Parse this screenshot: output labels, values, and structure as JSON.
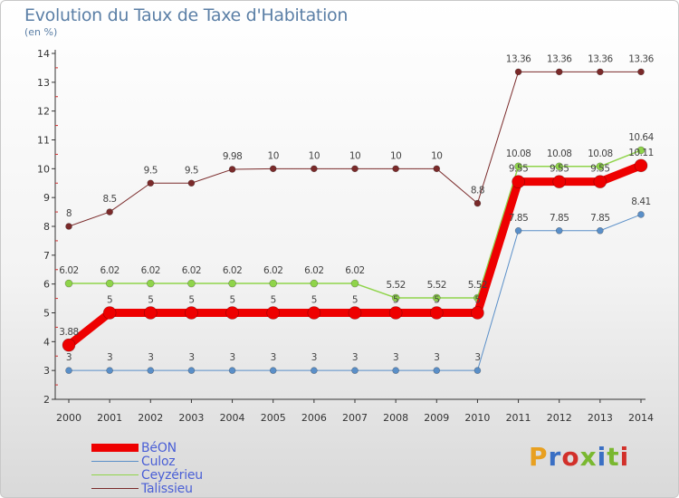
{
  "header": {
    "title": "Evolution du Taux de Taxe d'Habitation",
    "subtitle": "(en %)"
  },
  "brand": {
    "logo_text": "Proxiti",
    "colors": [
      "#e8a020",
      "#3a6fc4",
      "#d2302a",
      "#7ab830",
      "#3a6fc4",
      "#7ab830",
      "#d2302a"
    ]
  },
  "chart_data": {
    "type": "line",
    "title": "Evolution du Taux de Taxe d'Habitation",
    "subtitle": "(en %)",
    "xlabel": "",
    "ylabel": "",
    "categories": [
      "2000",
      "2001",
      "2002",
      "2003",
      "2004",
      "2005",
      "2006",
      "2007",
      "2008",
      "2009",
      "2010",
      "2011",
      "2012",
      "2013",
      "2014"
    ],
    "ylim": [
      2,
      14
    ],
    "yticks": [
      2,
      3,
      4,
      5,
      6,
      7,
      8,
      9,
      10,
      11,
      12,
      13,
      14
    ],
    "grid": false,
    "legend_position": "bottom-left",
    "series": [
      {
        "name": "Talissieu",
        "color": "#7a2a2a",
        "line_width": 1,
        "marker_r": 3.5,
        "values": [
          8,
          8.5,
          9.5,
          9.5,
          9.98,
          10,
          10,
          10,
          10,
          10,
          8.8,
          13.36,
          13.36,
          13.36,
          13.36
        ],
        "labels": [
          "8",
          "8.5",
          "9.5",
          "9.5",
          "9.98",
          "10",
          "10",
          "10",
          "10",
          "10",
          "8.8",
          "13.36",
          "13.36",
          "13.36",
          "13.36"
        ]
      },
      {
        "name": "Culoz",
        "color": "#5a8fc8",
        "line_width": 1,
        "marker_r": 3.5,
        "values": [
          3,
          3,
          3,
          3,
          3,
          3,
          3,
          3,
          3,
          3,
          3,
          7.85,
          7.85,
          7.85,
          8.41
        ],
        "labels": [
          "3",
          "3",
          "3",
          "3",
          "3",
          "3",
          "3",
          "3",
          "3",
          "3",
          "3",
          "7.85",
          "7.85",
          "7.85",
          "8.41"
        ]
      },
      {
        "name": "Ceyzérieu",
        "color": "#8fd44a",
        "line_width": 1.5,
        "marker_r": 4,
        "values": [
          6.02,
          6.02,
          6.02,
          6.02,
          6.02,
          6.02,
          6.02,
          6.02,
          5.52,
          5.52,
          5.52,
          10.08,
          10.08,
          10.08,
          10.64
        ],
        "labels": [
          "6.02",
          "6.02",
          "6.02",
          "6.02",
          "6.02",
          "6.02",
          "6.02",
          "6.02",
          "5.52",
          "5.52",
          "5.52",
          "10.08",
          "10.08",
          "10.08",
          "10.64"
        ]
      },
      {
        "name": "BéON",
        "color": "#ee0000",
        "line_width": 9,
        "marker_r": 7,
        "values": [
          3.88,
          5,
          5,
          5,
          5,
          5,
          5,
          5,
          5,
          5,
          5,
          9.55,
          9.55,
          9.55,
          10.11
        ],
        "labels": [
          "3.88",
          "5",
          "5",
          "5",
          "5",
          "5",
          "5",
          "5",
          "5",
          "5",
          "5",
          "9.55",
          "9.55",
          "9.55",
          "10.11"
        ]
      }
    ]
  },
  "legend": {
    "items": [
      {
        "name": "BéON",
        "color": "#ee0000",
        "weight": 9
      },
      {
        "name": "Culoz",
        "color": "#5a8fc8",
        "weight": 1.5
      },
      {
        "name": "Ceyzérieu",
        "color": "#8fd44a",
        "weight": 1.5
      },
      {
        "name": "Talissieu",
        "color": "#7a2a2a",
        "weight": 1.5
      }
    ]
  }
}
